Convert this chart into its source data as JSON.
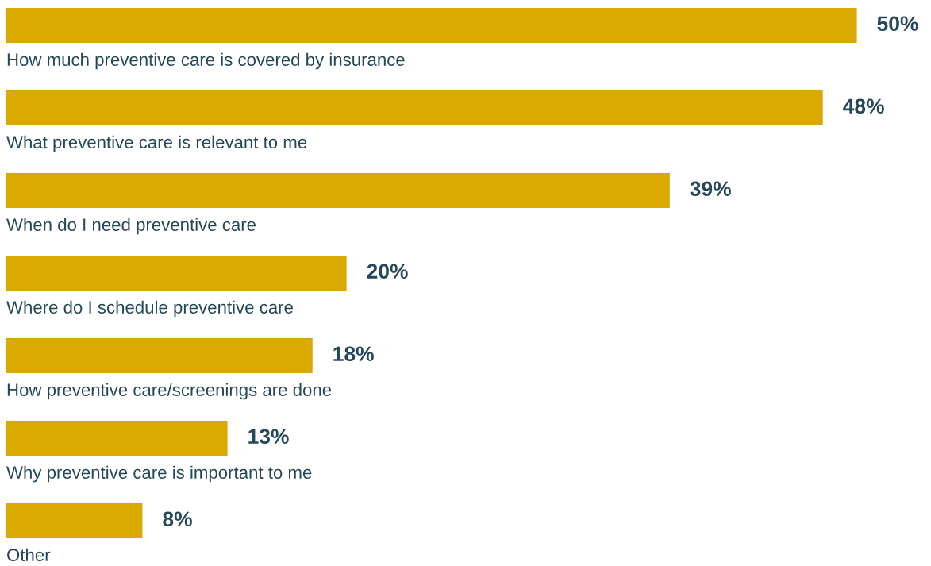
{
  "chart_data": {
    "type": "bar",
    "orientation": "horizontal",
    "categories": [
      "How much preventive care is covered by insurance",
      "What preventive care is relevant to me",
      "When do I need preventive care",
      "Where do I schedule preventive care",
      "How preventive care/screenings are done",
      "Why preventive care is important to me",
      "Other"
    ],
    "values": [
      50,
      48,
      39,
      20,
      18,
      13,
      8
    ],
    "value_labels": [
      "50%",
      "48%",
      "39%",
      "20%",
      "18%",
      "13%",
      "8%"
    ],
    "color": "#d9a900"
  }
}
